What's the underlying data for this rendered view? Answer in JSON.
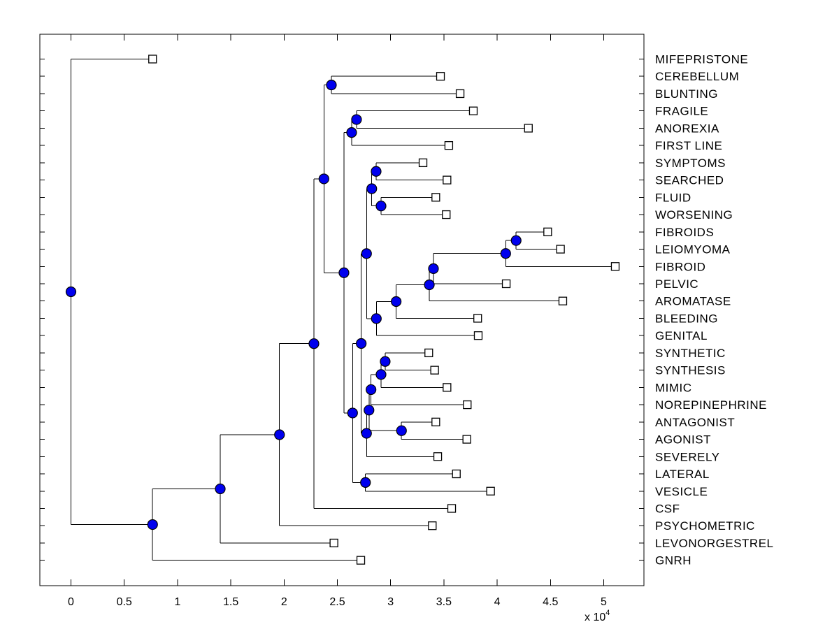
{
  "figure": {
    "background": "#ffffff",
    "axis_box_color": "#000000"
  },
  "chart_data": {
    "type": "dendrogram",
    "title": "",
    "orientation": "horizontal-roots-left",
    "x_unit": "10^4",
    "x_axis": {
      "tick_values": [
        0,
        0.5,
        1,
        1.5,
        2,
        2.5,
        3,
        3.5,
        4,
        4.5,
        5
      ],
      "tick_labels": [
        "0",
        "0.5",
        "1",
        "1.5",
        "2",
        "2.5",
        "3",
        "3.5",
        "4",
        "4.5",
        "5"
      ],
      "scale_label": "x 10",
      "scale_exponent": "4",
      "xlim": [
        -0.29,
        5.38
      ],
      "grid": false
    },
    "leaves": [
      {
        "label": "MIFEPRISTONE",
        "x": 0.766
      },
      {
        "label": "CEREBELLUM",
        "x": 3.468
      },
      {
        "label": "BLUNTING",
        "x": 3.652
      },
      {
        "label": "FRAGILE",
        "x": 3.776
      },
      {
        "label": "ANOREXIA",
        "x": 4.293
      },
      {
        "label": "FIRST LINE",
        "x": 3.546
      },
      {
        "label": "SYMPTOMS",
        "x": 3.304
      },
      {
        "label": "SEARCHED",
        "x": 3.529
      },
      {
        "label": "FLUID",
        "x": 3.424
      },
      {
        "label": "WORSENING",
        "x": 3.522
      },
      {
        "label": "FIBROIDS",
        "x": 4.474
      },
      {
        "label": "LEIOMYOMA",
        "x": 4.594
      },
      {
        "label": "FIBROID",
        "x": 5.108
      },
      {
        "label": "PELVIC",
        "x": 4.085
      },
      {
        "label": "AROMATASE",
        "x": 4.616
      },
      {
        "label": "BLEEDING",
        "x": 3.817
      },
      {
        "label": "GENITAL",
        "x": 3.822
      },
      {
        "label": "SYNTHETIC",
        "x": 3.358
      },
      {
        "label": "SYNTHESIS",
        "x": 3.413
      },
      {
        "label": "MIMIC",
        "x": 3.529
      },
      {
        "label": "NOREPINEPHRINE",
        "x": 3.719
      },
      {
        "label": "ANTAGONIST",
        "x": 3.424
      },
      {
        "label": "AGONIST",
        "x": 3.715
      },
      {
        "label": "SEVERELY",
        "x": 3.442
      },
      {
        "label": "LATERAL",
        "x": 3.617
      },
      {
        "label": "VESICLE",
        "x": 3.938
      },
      {
        "label": "CSF",
        "x": 3.573
      },
      {
        "label": "PSYCHOMETRIC",
        "x": 3.391
      },
      {
        "label": "LEVONORGESTREL",
        "x": 2.468
      },
      {
        "label": "GNRH",
        "x": 2.72
      }
    ],
    "nodes": [
      {
        "id": "n1",
        "x": 2.444,
        "children": [
          "CEREBELLUM",
          "BLUNTING"
        ]
      },
      {
        "id": "n2",
        "x": 2.68,
        "children": [
          "FRAGILE",
          "ANOREXIA"
        ]
      },
      {
        "id": "n3",
        "x": 2.634,
        "children": [
          "n2",
          "FIRST LINE"
        ]
      },
      {
        "id": "n4",
        "x": 2.864,
        "children": [
          "SYMPTOMS",
          "SEARCHED"
        ]
      },
      {
        "id": "n5",
        "x": 2.91,
        "children": [
          "FLUID",
          "WORSENING"
        ]
      },
      {
        "id": "n6",
        "x": 2.823,
        "children": [
          "n4",
          "n5"
        ]
      },
      {
        "id": "n7",
        "x": 4.178,
        "children": [
          "FIBROIDS",
          "LEIOMYOMA"
        ]
      },
      {
        "id": "n8",
        "x": 4.08,
        "children": [
          "n7",
          "FIBROID"
        ]
      },
      {
        "id": "n9",
        "x": 3.402,
        "children": [
          "n8",
          "PELVIC"
        ]
      },
      {
        "id": "n10",
        "x": 3.363,
        "children": [
          "n9",
          "AROMATASE"
        ]
      },
      {
        "id": "n11",
        "x": 3.052,
        "children": [
          "n10",
          "BLEEDING"
        ]
      },
      {
        "id": "n12",
        "x": 2.866,
        "children": [
          "n11",
          "GENITAL"
        ]
      },
      {
        "id": "n13",
        "x": 2.774,
        "children": [
          "n6",
          "n12"
        ]
      },
      {
        "id": "n14",
        "x": 2.949,
        "children": [
          "SYNTHETIC",
          "SYNTHESIS"
        ]
      },
      {
        "id": "n15",
        "x": 2.91,
        "children": [
          "n14",
          "MIMIC"
        ]
      },
      {
        "id": "n16",
        "x": 2.816,
        "children": [
          "n15",
          "NOREPINEPHRINE"
        ]
      },
      {
        "id": "n17",
        "x": 3.102,
        "children": [
          "ANTAGONIST",
          "AGONIST"
        ]
      },
      {
        "id": "n18",
        "x": 2.797,
        "children": [
          "n16",
          "n17"
        ]
      },
      {
        "id": "n19",
        "x": 2.774,
        "children": [
          "n18",
          "SEVERELY"
        ]
      },
      {
        "id": "n20",
        "x": 2.724,
        "children": [
          "n13",
          "n19"
        ]
      },
      {
        "id": "n21",
        "x": 2.764,
        "children": [
          "LATERAL",
          "VESICLE"
        ]
      },
      {
        "id": "n22",
        "x": 2.643,
        "children": [
          "n20",
          "n21"
        ]
      },
      {
        "id": "n23",
        "x": 2.562,
        "children": [
          "n3",
          "n22"
        ]
      },
      {
        "id": "n24",
        "x": 2.374,
        "children": [
          "n1",
          "n23"
        ]
      },
      {
        "id": "n25",
        "x": 2.28,
        "children": [
          "n24",
          "CSF"
        ]
      },
      {
        "id": "n26",
        "x": 1.957,
        "children": [
          "n25",
          "PSYCHOMETRIC"
        ]
      },
      {
        "id": "n27",
        "x": 1.401,
        "children": [
          "n26",
          "LEVONORGESTREL"
        ]
      },
      {
        "id": "n28",
        "x": 0.766,
        "children": [
          "n27",
          "GNRH"
        ]
      },
      {
        "id": "n29",
        "x": 0.0,
        "children": [
          "MIFEPRISTONE",
          "n28"
        ]
      }
    ],
    "style": {
      "line_color": "#000000",
      "node_fill": "#0000ee",
      "node_edge": "#000000",
      "leaf_fill": "#ffffff",
      "leaf_edge": "#000000",
      "node_marker": "circle",
      "leaf_marker": "square"
    }
  }
}
